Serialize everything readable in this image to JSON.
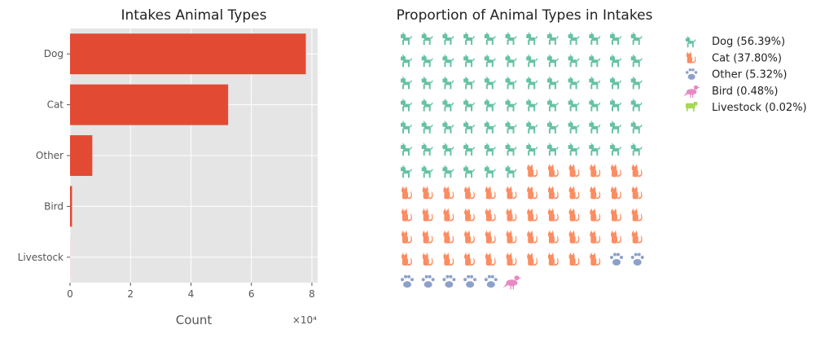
{
  "chart_data": [
    {
      "type": "bar",
      "orientation": "horizontal",
      "title": "Intakes Animal Types",
      "xlabel": "Count",
      "ylabel": "",
      "x_offset_text": "×10⁴",
      "xlim": [
        0,
        81900
      ],
      "xticks": [
        0,
        20000,
        40000,
        60000,
        80000
      ],
      "xtick_labels": [
        "0",
        "2",
        "4",
        "6",
        "8"
      ],
      "categories": [
        "Dog",
        "Cat",
        "Other",
        "Bird",
        "Livestock"
      ],
      "values": [
        78000,
        52300,
        7360,
        660,
        28
      ],
      "color": "#E24A33",
      "background": "#E5E5E5",
      "grid": true
    },
    {
      "type": "waffle",
      "title": "Proportion of Animal Types in Intakes",
      "rows": 13,
      "columns": 12,
      "categories": [
        {
          "name": "Dog",
          "percent": 56.39,
          "count": 78,
          "color": "#66C2A5",
          "icon": "dog-icon",
          "legend": "Dog (56.39%)"
        },
        {
          "name": "Cat",
          "percent": 37.8,
          "count": 52,
          "color": "#FC8D62",
          "icon": "cat-icon",
          "legend": "Cat (37.80%)"
        },
        {
          "name": "Other",
          "percent": 5.32,
          "count": 7,
          "color": "#8DA0CB",
          "icon": "paw-icon",
          "legend": "Other (5.32%)"
        },
        {
          "name": "Bird",
          "percent": 0.48,
          "count": 1,
          "color": "#E78AC3",
          "icon": "bird-icon",
          "legend": "Bird (0.48%)"
        },
        {
          "name": "Livestock",
          "percent": 0.02,
          "count": 0,
          "color": "#A6D854",
          "icon": "cow-icon",
          "legend": "Livestock (0.02%)"
        }
      ],
      "legend_position": "upper-right"
    }
  ]
}
